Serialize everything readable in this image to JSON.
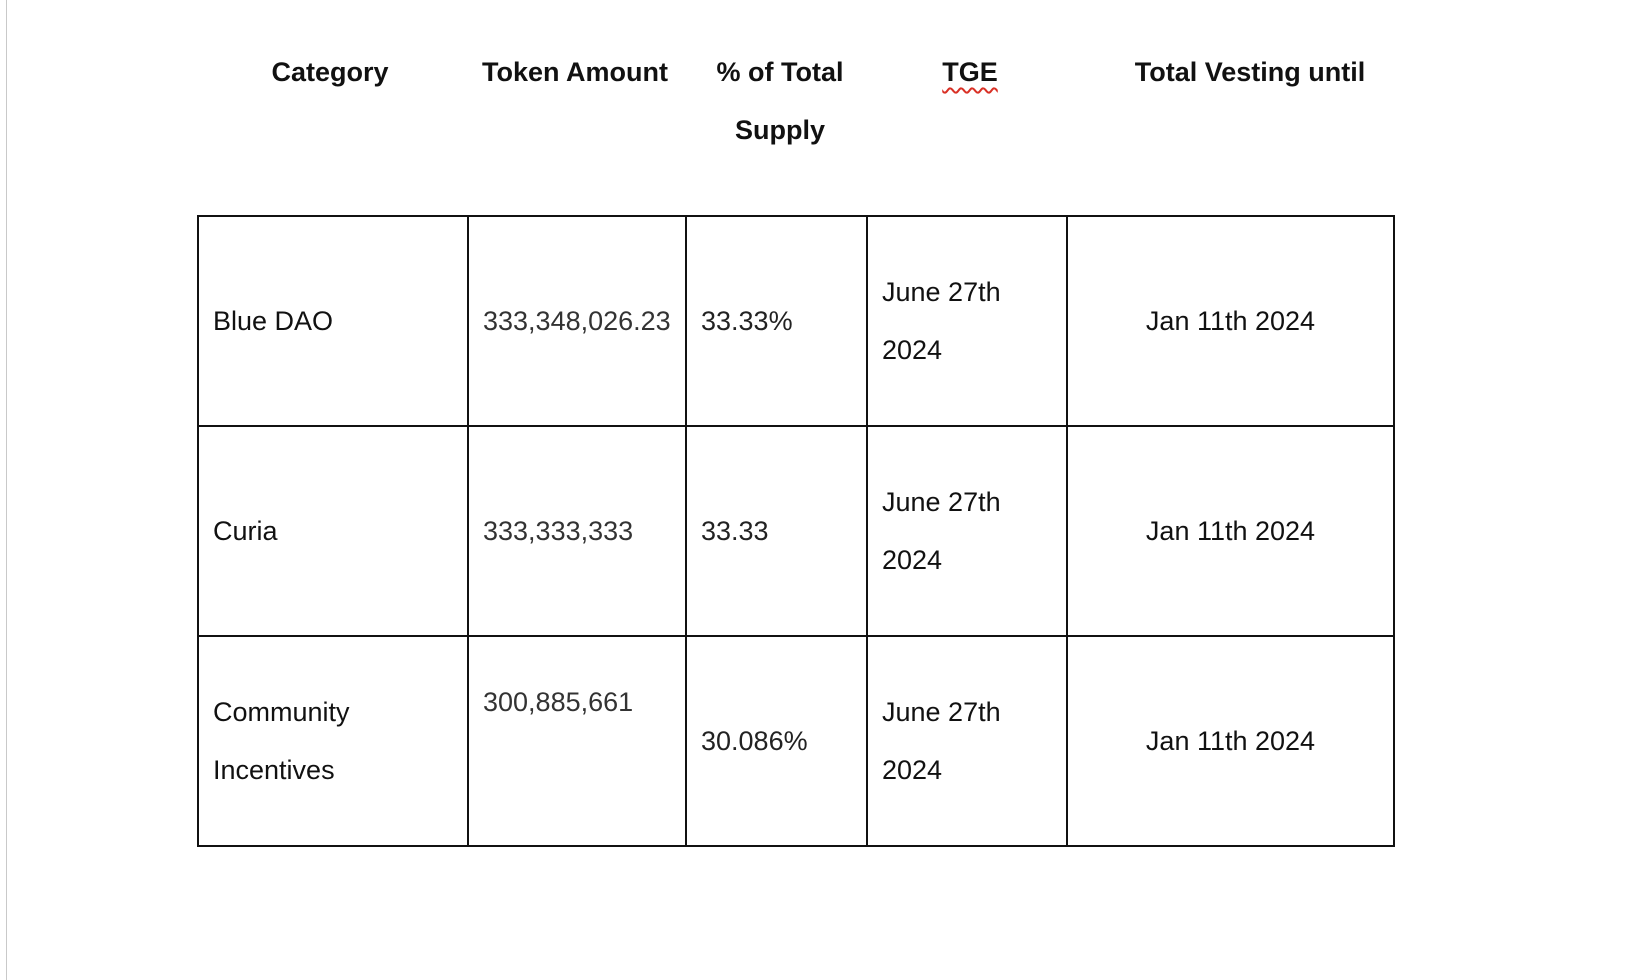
{
  "table": {
    "headers": {
      "category": "Category",
      "token_amount": "Token Amount",
      "percent_line1": "% of Total",
      "percent_line2": "Supply",
      "tge": "TGE",
      "vesting": "Total Vesting until"
    },
    "rows": [
      {
        "category": "Blue DAO",
        "token_amount": "333,348,026.23",
        "percent": "33.33%",
        "tge_line1": "June 27th",
        "tge_line2": "2024",
        "vesting": "Jan 11th 2024"
      },
      {
        "category": "Curia",
        "token_amount": "333,333,333",
        "percent": "33.33",
        "tge_line1": "June 27th",
        "tge_line2": "2024",
        "vesting": "Jan 11th 2024"
      },
      {
        "category_line1": "Community",
        "category_line2": "Incentives",
        "token_amount": "300,885,661",
        "percent": "30.086%",
        "tge_line1": "June 27th",
        "tge_line2": "2024",
        "vesting": "Jan 11th 2024"
      }
    ]
  }
}
